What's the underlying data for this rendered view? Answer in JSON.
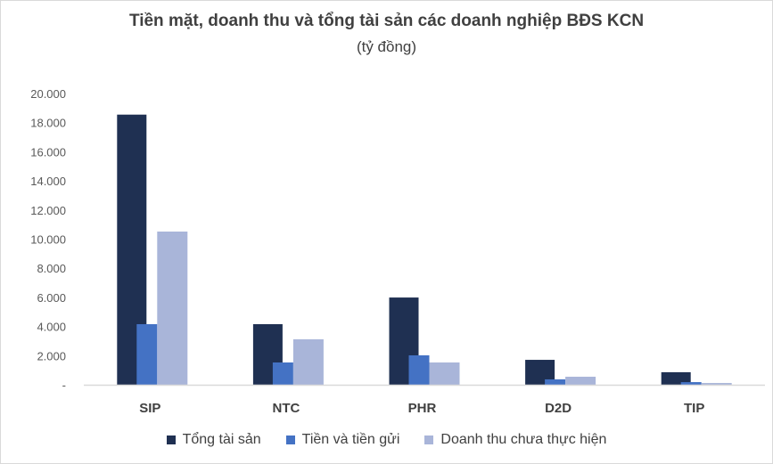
{
  "chart_data": {
    "type": "bar",
    "title": "Tiền mặt, doanh thu và tổng tài sản các doanh nghiệp BĐS KCN",
    "subtitle": "(tỷ đồng)",
    "categories": [
      "SIP",
      "NTC",
      "PHR",
      "D2D",
      "TIP"
    ],
    "series": [
      {
        "name": "Tổng tài sản",
        "color": "#1f3052",
        "values": [
          18550,
          4160,
          5990,
          1710,
          860
        ]
      },
      {
        "name": "Tiền và tiền gửi",
        "color": "#4472c4",
        "values": [
          4160,
          1530,
          2020,
          370,
          180
        ]
      },
      {
        "name": "Doanh thu chưa thực hiện",
        "color": "#a9b5d9",
        "values": [
          10520,
          3120,
          1530,
          550,
          120
        ]
      }
    ],
    "yticks": [
      "-",
      "2.000",
      "4.000",
      "6.000",
      "8.000",
      "10.000",
      "12.000",
      "14.000",
      "16.000",
      "18.000",
      "20.000"
    ],
    "ylim": [
      0,
      20000
    ],
    "grid": false,
    "legend": "bottom"
  }
}
